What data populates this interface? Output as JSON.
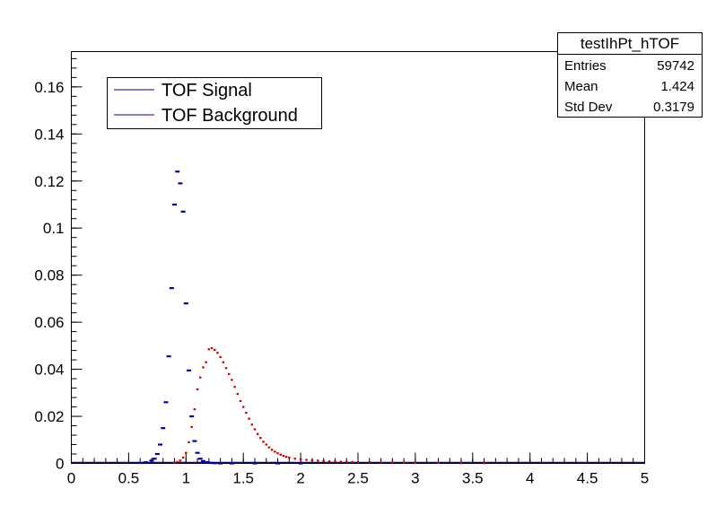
{
  "chart_data": {
    "type": "scatter",
    "xlim": [
      0,
      5
    ],
    "ylim": [
      0,
      0.175
    ],
    "x_ticks": [
      "0",
      "0.5",
      "1",
      "1.5",
      "2",
      "2.5",
      "3",
      "3.5",
      "4",
      "4.5",
      "5"
    ],
    "y_ticks": [
      "0",
      "0.02",
      "0.04",
      "0.06",
      "0.08",
      "0.1",
      "0.12",
      "0.14",
      "0.16"
    ],
    "legend_placement": "top-left",
    "series": [
      {
        "name": "TOF Signal",
        "color": "#0000aa",
        "x": [
          0.6,
          0.65,
          0.7,
          0.725,
          0.75,
          0.775,
          0.8,
          0.825,
          0.85,
          0.875,
          0.9,
          0.925,
          0.95,
          0.975,
          1.0,
          1.025,
          1.05,
          1.075,
          1.1,
          1.125,
          1.15,
          1.175,
          1.2,
          1.225,
          1.25,
          1.3,
          1.4,
          1.6,
          1.8,
          2.0
        ],
        "y": [
          0.0002,
          0.0005,
          0.0012,
          0.002,
          0.004,
          0.008,
          0.015,
          0.026,
          0.0455,
          0.0745,
          0.11,
          0.124,
          0.119,
          0.107,
          0.068,
          0.0395,
          0.02,
          0.0095,
          0.0045,
          0.002,
          0.001,
          0.0005,
          0.0003,
          0.0002,
          0.0001,
          0.0,
          0.0,
          0.0,
          0.0,
          0.0
        ]
      },
      {
        "name": "TOF Background",
        "color": "#cc0000",
        "x": [
          0.9,
          0.925,
          0.95,
          0.975,
          1.0,
          1.025,
          1.05,
          1.075,
          1.1,
          1.125,
          1.15,
          1.175,
          1.2,
          1.225,
          1.25,
          1.275,
          1.3,
          1.325,
          1.35,
          1.375,
          1.4,
          1.425,
          1.45,
          1.475,
          1.5,
          1.525,
          1.55,
          1.575,
          1.6,
          1.625,
          1.65,
          1.675,
          1.7,
          1.725,
          1.75,
          1.775,
          1.8,
          1.825,
          1.85,
          1.875,
          1.9,
          1.95,
          2.0,
          2.05,
          2.1,
          2.15,
          2.2,
          2.25,
          2.3,
          2.35,
          2.4,
          2.45,
          2.5,
          2.6,
          2.7,
          2.8,
          2.9,
          3.0,
          3.2,
          3.4,
          3.6
        ],
        "y": [
          0.0003,
          0.0006,
          0.0012,
          0.0025,
          0.0045,
          0.009,
          0.0155,
          0.023,
          0.0315,
          0.0365,
          0.0408,
          0.043,
          0.0485,
          0.049,
          0.0482,
          0.047,
          0.0452,
          0.043,
          0.0405,
          0.038,
          0.0355,
          0.0325,
          0.0295,
          0.0265,
          0.024,
          0.0215,
          0.019,
          0.0165,
          0.0145,
          0.0125,
          0.0108,
          0.0092,
          0.008,
          0.0068,
          0.0058,
          0.005,
          0.0043,
          0.0037,
          0.0032,
          0.0028,
          0.0025,
          0.002,
          0.0017,
          0.0015,
          0.0013,
          0.0012,
          0.001,
          0.0009,
          0.0008,
          0.0007,
          0.0006,
          0.0006,
          0.0005,
          0.0005,
          0.0004,
          0.0003,
          0.0003,
          0.0002,
          0.0002,
          0.0001,
          0.0001
        ]
      }
    ]
  },
  "stats": {
    "title": "testIhPt_hTOF",
    "rows": [
      {
        "label": "Entries",
        "value": "59742"
      },
      {
        "label": "Mean",
        "value": "1.424"
      },
      {
        "label": "Std Dev",
        "value": "0.3179"
      }
    ]
  }
}
